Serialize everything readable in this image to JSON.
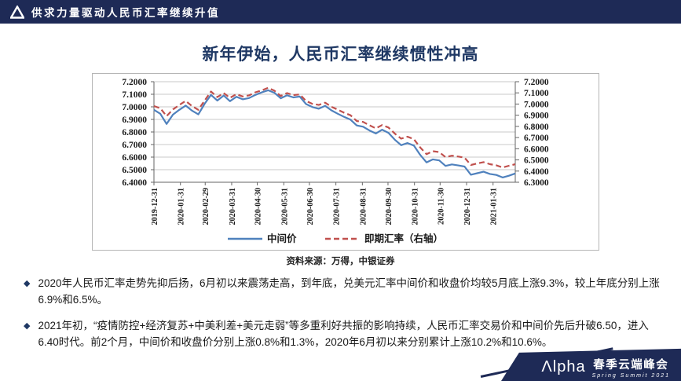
{
  "header": {
    "title": "供求力量驱动人民币汇率继续升值",
    "logo_icon": "alpha-triangle-logo"
  },
  "slide": {
    "title": "新年伊始，人民币汇率继续惯性冲高"
  },
  "chart_data": {
    "type": "line",
    "title": "新年伊始，人民币汇率继续惯性冲高",
    "source": "资料来源：万得，中银证券",
    "grid": true,
    "legend_position": "bottom",
    "x_tick_labels": [
      "2019-12-31",
      "2020-01-31",
      "2020-02-29",
      "2020-03-31",
      "2020-04-30",
      "2020-05-31",
      "2020-06-30",
      "2020-07-31",
      "2020-08-31",
      "2020-09-30",
      "2020-10-31",
      "2020-11-30",
      "2020-12-31",
      "2021-01-31"
    ],
    "tick_days": [
      0,
      31,
      60,
      91,
      121,
      152,
      182,
      213,
      244,
      274,
      305,
      335,
      366,
      397
    ],
    "total_days": 423,
    "left_axis": {
      "min": 6.4,
      "max": 7.2,
      "step": 0.1,
      "decimals": 4
    },
    "right_axis": {
      "min": 6.3,
      "max": 7.2,
      "step": 0.1,
      "decimals": 4
    },
    "series": [
      {
        "name": "中间价",
        "axis": "left",
        "color": "#4f81bd",
        "style": "solid",
        "values": [
          6.976,
          6.945,
          6.864,
          6.938,
          6.976,
          7.01,
          6.97,
          6.94,
          7.025,
          7.095,
          7.05,
          7.09,
          7.045,
          7.08,
          7.06,
          7.07,
          7.095,
          7.115,
          7.132,
          7.112,
          7.068,
          7.092,
          7.075,
          7.082,
          7.022,
          6.998,
          6.985,
          7.008,
          6.972,
          6.945,
          6.92,
          6.898,
          6.852,
          6.842,
          6.812,
          6.788,
          6.818,
          6.793,
          6.738,
          6.695,
          6.712,
          6.692,
          6.618,
          6.558,
          6.582,
          6.574,
          6.53,
          6.542,
          6.534,
          6.525,
          6.46,
          6.472,
          6.484,
          6.466,
          6.458,
          6.438,
          6.452,
          6.47
        ]
      },
      {
        "name": "即期汇率（右轴）",
        "axis": "right",
        "color": "#c0504d",
        "style": "dashed",
        "values": [
          6.982,
          6.962,
          6.892,
          6.952,
          6.992,
          7.028,
          6.982,
          6.948,
          7.032,
          7.112,
          7.062,
          7.098,
          7.056,
          7.088,
          7.068,
          7.078,
          7.105,
          7.122,
          7.145,
          7.12,
          7.072,
          7.098,
          7.08,
          7.086,
          7.028,
          7.002,
          6.992,
          7.012,
          6.976,
          6.95,
          6.922,
          6.9,
          6.848,
          6.84,
          6.81,
          6.782,
          6.812,
          6.79,
          6.735,
          6.69,
          6.708,
          6.686,
          6.612,
          6.552,
          6.578,
          6.57,
          6.525,
          6.538,
          6.53,
          6.52,
          6.455,
          6.468,
          6.48,
          6.462,
          6.452,
          6.432,
          6.448,
          6.462
        ]
      }
    ],
    "colors": {
      "grid": "#c8c8c8",
      "axis": "#666666",
      "box_border": "#b5b5b5"
    }
  },
  "bullet_marker": "◆",
  "bullets": [
    "2020年人民币汇率走势先抑后扬，6月初以来震荡走高，到年底，兑美元汇率中间价和收盘价均较5月底上涨9.3%，较上年底分别上涨6.9%和6.5%。",
    "2021年初，“疫情防控+经济复苏+中美利差+美元走弱”等多重利好共振的影响持续，人民币汇率交易价和中间价先后升破6.50，进入6.40时代。前2个月，中间价和收盘价分别上涨0.8%和1.3%，2020年6月初以来分别累计上涨10.2%和10.6%。"
  ],
  "footer": {
    "logo": "Λlpha",
    "event": "春季云端峰会",
    "subtitle": "Spring Summit 2021"
  },
  "colors": {
    "navy": "#1e2a56",
    "title_navy": "#1f3864",
    "line_blue": "#4f81bd",
    "line_red": "#c0504d"
  }
}
